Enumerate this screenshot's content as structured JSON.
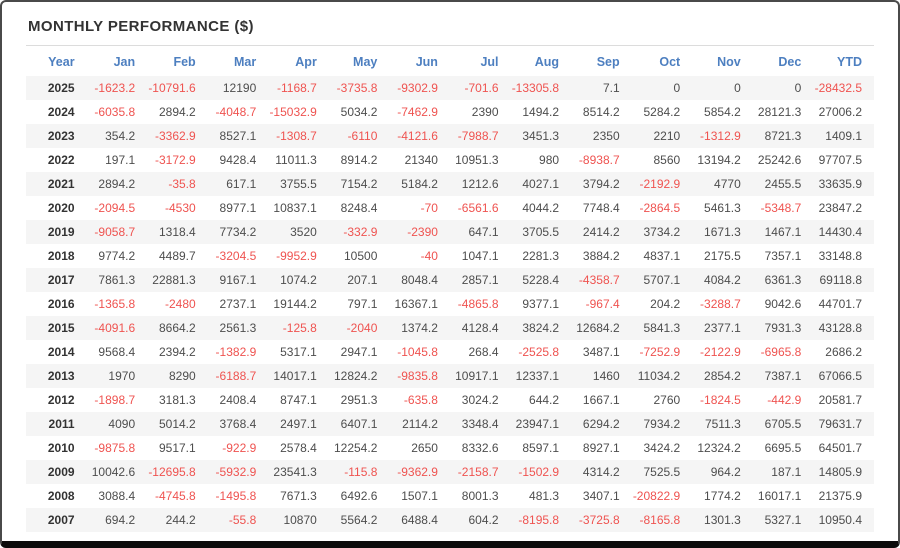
{
  "page": {
    "title": "MONTHLY PERFORMANCE ($)"
  },
  "colors": {
    "title_text": "#333333",
    "header_blue": "#4d7fc0",
    "negative_red": "#ef5350",
    "positive_text": "#4d4d4d",
    "year_text": "#333333",
    "stripe_bg": "#f5f5f5"
  },
  "chart_data": {
    "type": "table",
    "title": "MONTHLY PERFORMANCE ($)",
    "columns": [
      "Year",
      "Jan",
      "Feb",
      "Mar",
      "Apr",
      "May",
      "Jun",
      "Jul",
      "Aug",
      "Sep",
      "Oct",
      "Nov",
      "Dec",
      "YTD"
    ],
    "rows": [
      [
        "2025",
        "-1623.2",
        "-10791.6",
        "12190",
        "-1168.7",
        "-3735.8",
        "-9302.9",
        "-701.6",
        "-13305.8",
        "7.1",
        "0",
        "0",
        "0",
        "-28432.5"
      ],
      [
        "2024",
        "-6035.8",
        "2894.2",
        "-4048.7",
        "-15032.9",
        "5034.2",
        "-7462.9",
        "2390",
        "1494.2",
        "8514.2",
        "5284.2",
        "5854.2",
        "28121.3",
        "27006.2"
      ],
      [
        "2023",
        "354.2",
        "-3362.9",
        "8527.1",
        "-1308.7",
        "-6110",
        "-4121.6",
        "-7988.7",
        "3451.3",
        "2350",
        "2210",
        "-1312.9",
        "8721.3",
        "1409.1"
      ],
      [
        "2022",
        "197.1",
        "-3172.9",
        "9428.4",
        "11011.3",
        "8914.2",
        "21340",
        "10951.3",
        "980",
        "-8938.7",
        "8560",
        "13194.2",
        "25242.6",
        "97707.5"
      ],
      [
        "2021",
        "2894.2",
        "-35.8",
        "617.1",
        "3755.5",
        "7154.2",
        "5184.2",
        "1212.6",
        "4027.1",
        "3794.2",
        "-2192.9",
        "4770",
        "2455.5",
        "33635.9"
      ],
      [
        "2020",
        "-2094.5",
        "-4530",
        "8977.1",
        "10837.1",
        "8248.4",
        "-70",
        "-6561.6",
        "4044.2",
        "7748.4",
        "-2864.5",
        "5461.3",
        "-5348.7",
        "23847.2"
      ],
      [
        "2019",
        "-9058.7",
        "1318.4",
        "7734.2",
        "3520",
        "-332.9",
        "-2390",
        "647.1",
        "3705.5",
        "2414.2",
        "3734.2",
        "1671.3",
        "1467.1",
        "14430.4"
      ],
      [
        "2018",
        "9774.2",
        "4489.7",
        "-3204.5",
        "-9952.9",
        "10500",
        "-40",
        "1047.1",
        "2281.3",
        "3884.2",
        "4837.1",
        "2175.5",
        "7357.1",
        "33148.8"
      ],
      [
        "2017",
        "7861.3",
        "22881.3",
        "9167.1",
        "1074.2",
        "207.1",
        "8048.4",
        "2857.1",
        "5228.4",
        "-4358.7",
        "5707.1",
        "4084.2",
        "6361.3",
        "69118.8"
      ],
      [
        "2016",
        "-1365.8",
        "-2480",
        "2737.1",
        "19144.2",
        "797.1",
        "16367.1",
        "-4865.8",
        "9377.1",
        "-967.4",
        "204.2",
        "-3288.7",
        "9042.6",
        "44701.7"
      ],
      [
        "2015",
        "-4091.6",
        "8664.2",
        "2561.3",
        "-125.8",
        "-2040",
        "1374.2",
        "4128.4",
        "3824.2",
        "12684.2",
        "5841.3",
        "2377.1",
        "7931.3",
        "43128.8"
      ],
      [
        "2014",
        "9568.4",
        "2394.2",
        "-1382.9",
        "5317.1",
        "2947.1",
        "-1045.8",
        "268.4",
        "-2525.8",
        "3487.1",
        "-7252.9",
        "-2122.9",
        "-6965.8",
        "2686.2"
      ],
      [
        "2013",
        "1970",
        "8290",
        "-6188.7",
        "14017.1",
        "12824.2",
        "-9835.8",
        "10917.1",
        "12337.1",
        "1460",
        "11034.2",
        "2854.2",
        "7387.1",
        "67066.5"
      ],
      [
        "2012",
        "-1898.7",
        "3181.3",
        "2408.4",
        "8747.1",
        "2951.3",
        "-635.8",
        "3024.2",
        "644.2",
        "1667.1",
        "2760",
        "-1824.5",
        "-442.9",
        "20581.7"
      ],
      [
        "2011",
        "4090",
        "5014.2",
        "3768.4",
        "2497.1",
        "6407.1",
        "2114.2",
        "3348.4",
        "23947.1",
        "6294.2",
        "7934.2",
        "7511.3",
        "6705.5",
        "79631.7"
      ],
      [
        "2010",
        "-9875.8",
        "9517.1",
        "-922.9",
        "2578.4",
        "12254.2",
        "2650",
        "8332.6",
        "8597.1",
        "8927.1",
        "3424.2",
        "12324.2",
        "6695.5",
        "64501.7"
      ],
      [
        "2009",
        "10042.6",
        "-12695.8",
        "-5932.9",
        "23541.3",
        "-115.8",
        "-9362.9",
        "-2158.7",
        "-1502.9",
        "4314.2",
        "7525.5",
        "964.2",
        "187.1",
        "14805.9"
      ],
      [
        "2008",
        "3088.4",
        "-4745.8",
        "-1495.8",
        "7671.3",
        "6492.6",
        "1507.1",
        "8001.3",
        "481.3",
        "3407.1",
        "-20822.9",
        "1774.2",
        "16017.1",
        "21375.9"
      ],
      [
        "2007",
        "694.2",
        "244.2",
        "-55.8",
        "10870",
        "5564.2",
        "6488.4",
        "604.2",
        "-8195.8",
        "-3725.8",
        "-8165.8",
        "1301.3",
        "5327.1",
        "10950.4"
      ]
    ]
  }
}
